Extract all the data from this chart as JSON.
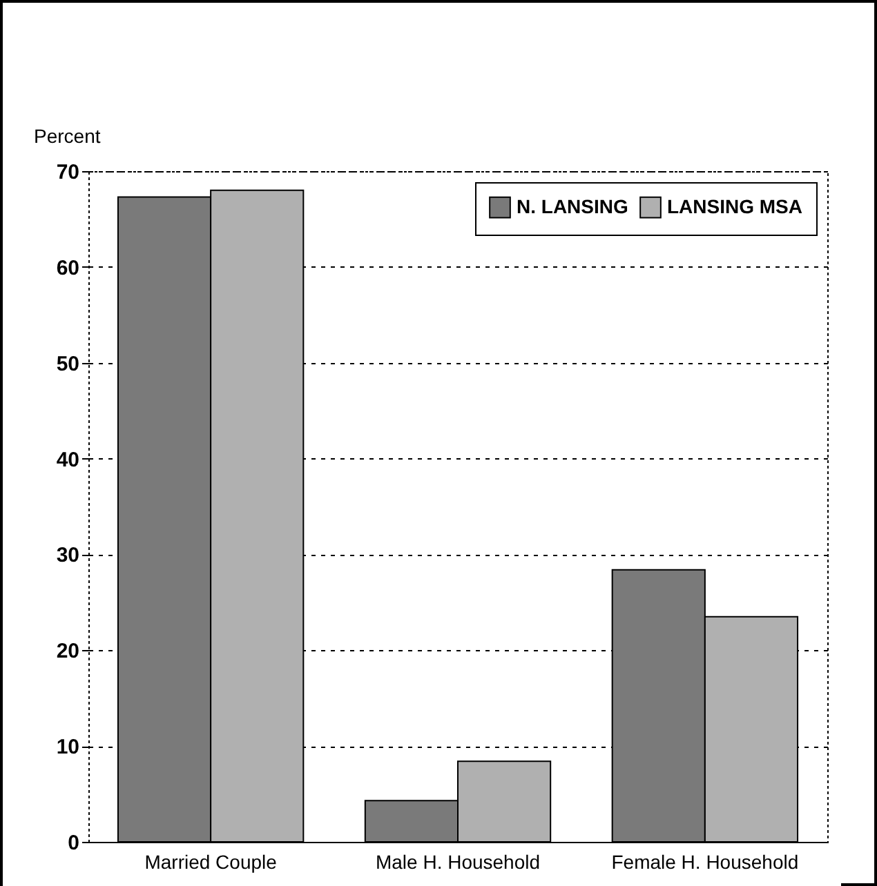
{
  "chart_data": {
    "type": "bar",
    "ylabel": "Percent",
    "categories": [
      "Married Couple",
      "Male H. Household",
      "Female H. Household"
    ],
    "series": [
      {
        "name": "N. LANSING",
        "color": "#7a7a7a",
        "values": [
          67.3,
          4.3,
          28.4
        ]
      },
      {
        "name": "LANSING MSA",
        "color": "#b0b0b0",
        "values": [
          68.0,
          8.4,
          23.5
        ]
      }
    ],
    "ylim": [
      0,
      70
    ],
    "yticks": [
      0,
      10,
      20,
      30,
      40,
      50,
      60,
      70
    ],
    "grid": "y",
    "legend": "top right"
  }
}
